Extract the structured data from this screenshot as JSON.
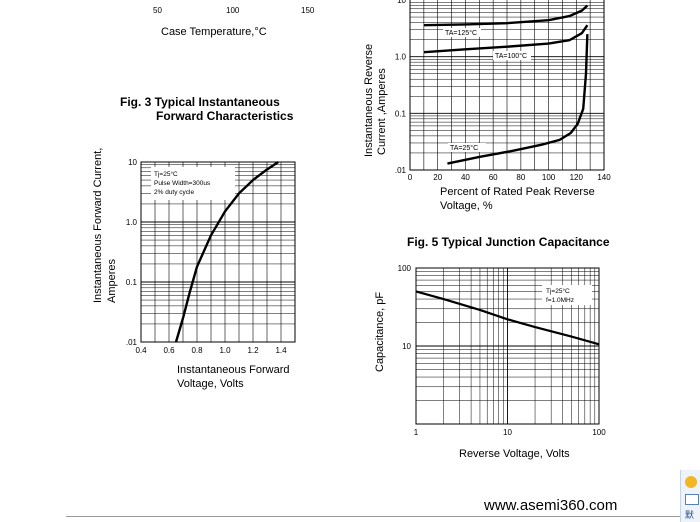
{
  "top_fragment": {
    "ticks": [
      "50",
      "100",
      "150"
    ],
    "xlabel": "Case Temperature,°C"
  },
  "fig3": {
    "title_line1": "Fig. 3 Typical Instantaneous",
    "title_line2": "Forward Characteristics"
  },
  "fig5": {
    "title": "Fig. 5 Typical Junction Capacitance"
  },
  "footer": {
    "url": "www.asemi360.com"
  },
  "side_widget": {
    "label": "默"
  },
  "chart_data": [
    {
      "type": "line",
      "ylabel_line1": "Instantaneous Reverse",
      "ylabel_line2": "Current ,Amperes",
      "xlabel_line1": "Percent of Rated Peak Reverse",
      "xlabel_line2": "Voltage, %",
      "x_ticks": [
        "0",
        "20",
        "40",
        "60",
        "80",
        "100",
        "120",
        "140"
      ],
      "y_ticks": [
        "10",
        "1.0",
        "0.1",
        ".01"
      ],
      "xlim": [
        0,
        140
      ],
      "ylim": [
        0.01,
        10
      ],
      "y_scale": "log",
      "grid": true,
      "series": [
        {
          "name": "TA=125°C",
          "x": [
            10,
            40,
            70,
            100,
            115,
            124,
            128
          ],
          "y": [
            3.6,
            3.7,
            3.9,
            4.4,
            5.2,
            6.5,
            8.0
          ]
        },
        {
          "name": "TA=100°C",
          "x": [
            10,
            40,
            70,
            100,
            115,
            124,
            128
          ],
          "y": [
            1.2,
            1.35,
            1.5,
            1.7,
            1.95,
            2.6,
            3.6
          ]
        },
        {
          "name": "TA=25°C",
          "x": [
            27,
            50,
            75,
            95,
            108,
            116,
            121,
            125,
            127,
            128
          ],
          "y": [
            0.013,
            0.017,
            0.022,
            0.028,
            0.034,
            0.045,
            0.065,
            0.12,
            0.5,
            2.5
          ]
        }
      ]
    },
    {
      "type": "line",
      "title_line1": "Fig. 3 Typical Instantaneous",
      "title_line2": "Forward Characteristics",
      "ylabel_line1": "Instantaneous Forward Current,",
      "ylabel_line2": "Amperes",
      "xlabel_line1": "Instantaneous Forward",
      "xlabel_line2": "Voltage, Volts",
      "x_ticks": [
        "0.4",
        "0.6",
        "0.8",
        "1.0",
        "1.2",
        "1.4"
      ],
      "y_ticks": [
        "10",
        "1.0",
        "0.1",
        ".01"
      ],
      "xlim": [
        0.4,
        1.5
      ],
      "ylim": [
        0.01,
        10
      ],
      "y_scale": "log",
      "grid": true,
      "annotations": [
        "Tj=25°C",
        "Pulse Width=300us",
        "2% duty cycle"
      ],
      "series": [
        {
          "x": [
            0.65,
            0.7,
            0.75,
            0.8,
            0.9,
            1.0,
            1.1,
            1.2,
            1.3,
            1.38
          ],
          "y": [
            0.01,
            0.025,
            0.07,
            0.18,
            0.6,
            1.5,
            3.0,
            5.0,
            7.5,
            10
          ]
        }
      ]
    },
    {
      "type": "line",
      "title": "Fig. 5 Typical Junction Capacitance",
      "ylabel": "Capacitance, pF",
      "xlabel": "Reverse Voltage, Volts",
      "x_ticks": [
        "1",
        "10",
        "100"
      ],
      "y_ticks": [
        "100",
        "10"
      ],
      "xlim": [
        1,
        100
      ],
      "ylim": [
        1,
        100
      ],
      "x_scale": "log",
      "y_scale": "log",
      "grid": true,
      "annotations": [
        "Tj=25°C",
        "f=1.0MHz"
      ],
      "series": [
        {
          "x": [
            1,
            2,
            5,
            10,
            20,
            50,
            100
          ],
          "y": [
            50,
            40,
            29,
            22,
            17.5,
            13.2,
            10.5
          ]
        }
      ]
    }
  ]
}
